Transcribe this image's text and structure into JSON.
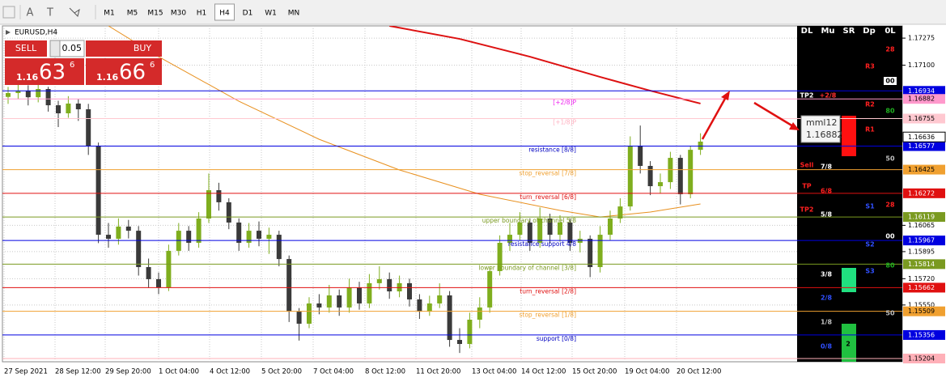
{
  "toolbar": {
    "tools": [
      "A",
      "T"
    ],
    "timeframes": [
      "M1",
      "M5",
      "M15",
      "M30",
      "H1",
      "H4",
      "D1",
      "W1",
      "MN"
    ],
    "active": "H4"
  },
  "symbol": "EURUSD,H4",
  "trade": {
    "sell": "SELL",
    "buy": "BUY",
    "lot": 0.05,
    "bid": {
      "big": 1.16,
      "pips": 63,
      "point": 6
    },
    "ask": {
      "big": 1.16,
      "pips": 66,
      "point": 6
    }
  },
  "chart": {
    "type": "candlestick",
    "ylim": [
      1.15183,
      1.17354
    ],
    "yticks": [
      1.17275,
      {
        "value": 1.171,
        "label": "1.17100"
      },
      1.16065,
      1.15895,
      {
        "value": 1.1572,
        "label": "1.15720"
      },
      {
        "value": 1.1555,
        "label": "1.15550"
      }
    ],
    "up_color": "#7fae1e",
    "down_color": "#3a3a3a",
    "grid": true,
    "candles": [
      [
        1.16895,
        1.1696,
        1.1685,
        1.1692
      ],
      [
        1.1692,
        1.16975,
        1.1688,
        1.16935
      ],
      [
        1.16935,
        1.1697,
        1.1684,
        1.16893
      ],
      [
        1.16893,
        1.1699,
        1.1686,
        1.16946
      ],
      [
        1.16946,
        1.1696,
        1.168,
        1.16841
      ],
      [
        1.16841,
        1.1687,
        1.167,
        1.16789
      ],
      [
        1.16789,
        1.169,
        1.1676,
        1.16852
      ],
      [
        1.16852,
        1.1688,
        1.1674,
        1.16815
      ],
      [
        1.16815,
        1.1685,
        1.1652,
        1.1658
      ],
      [
        1.1658,
        1.166,
        1.1595,
        1.16004
      ],
      [
        1.16004,
        1.1608,
        1.1592,
        1.15978
      ],
      [
        1.15978,
        1.1611,
        1.1594,
        1.16057
      ],
      [
        1.16057,
        1.161,
        1.1598,
        1.1603
      ],
      [
        1.1603,
        1.1606,
        1.1574,
        1.15795
      ],
      [
        1.15795,
        1.1585,
        1.1566,
        1.15717
      ],
      [
        1.15717,
        1.1576,
        1.1562,
        1.15664
      ],
      [
        1.15664,
        1.1594,
        1.1564,
        1.159
      ],
      [
        1.159,
        1.1608,
        1.1587,
        1.1603
      ],
      [
        1.1603,
        1.1606,
        1.159,
        1.15952
      ],
      [
        1.15952,
        1.1615,
        1.1592,
        1.16109
      ],
      [
        1.16109,
        1.164,
        1.1608,
        1.16292
      ],
      [
        1.16292,
        1.1634,
        1.1616,
        1.16214
      ],
      [
        1.16214,
        1.1624,
        1.1604,
        1.16083
      ],
      [
        1.16083,
        1.1611,
        1.159,
        1.15952
      ],
      [
        1.15952,
        1.1608,
        1.1592,
        1.1603
      ],
      [
        1.1603,
        1.1609,
        1.1593,
        1.15978
      ],
      [
        1.15978,
        1.1605,
        1.1588,
        1.16004
      ],
      [
        1.16004,
        1.1603,
        1.158,
        1.15847
      ],
      [
        1.15847,
        1.1587,
        1.1544,
        1.15507
      ],
      [
        1.15507,
        1.1553,
        1.1532,
        1.15429
      ],
      [
        1.15429,
        1.156,
        1.154,
        1.1556
      ],
      [
        1.1556,
        1.1562,
        1.1549,
        1.15534
      ],
      [
        1.15534,
        1.1568,
        1.155,
        1.15612
      ],
      [
        1.15612,
        1.1565,
        1.1548,
        1.15534
      ],
      [
        1.15534,
        1.1572,
        1.155,
        1.15664
      ],
      [
        1.15664,
        1.157,
        1.1552,
        1.1556
      ],
      [
        1.1556,
        1.1575,
        1.1553,
        1.15691
      ],
      [
        1.15691,
        1.158,
        1.1565,
        1.15717
      ],
      [
        1.15717,
        1.1576,
        1.1559,
        1.15638
      ],
      [
        1.15638,
        1.1574,
        1.156,
        1.15691
      ],
      [
        1.15691,
        1.1572,
        1.1554,
        1.15586
      ],
      [
        1.15586,
        1.1562,
        1.1546,
        1.15507
      ],
      [
        1.15507,
        1.1561,
        1.1548,
        1.1556
      ],
      [
        1.1556,
        1.1569,
        1.1553,
        1.15612
      ],
      [
        1.15612,
        1.1564,
        1.1528,
        1.15324
      ],
      [
        1.15324,
        1.154,
        1.1524,
        1.15298
      ],
      [
        1.15298,
        1.155,
        1.1527,
        1.15455
      ],
      [
        1.15455,
        1.156,
        1.154,
        1.15534
      ],
      [
        1.15534,
        1.158,
        1.155,
        1.15769
      ],
      [
        1.15769,
        1.16,
        1.1574,
        1.15952
      ],
      [
        1.15952,
        1.1608,
        1.159,
        1.16004
      ],
      [
        1.16004,
        1.1615,
        1.1597,
        1.16083
      ],
      [
        1.16083,
        1.1611,
        1.159,
        1.15952
      ],
      [
        1.15952,
        1.1618,
        1.1592,
        1.16109
      ],
      [
        1.16109,
        1.1614,
        1.1595,
        1.16004
      ],
      [
        1.16004,
        1.1613,
        1.1596,
        1.16083
      ],
      [
        1.16083,
        1.1611,
        1.159,
        1.15952
      ],
      [
        1.15952,
        1.1603,
        1.1589,
        1.15978
      ],
      [
        1.15978,
        1.16,
        1.1573,
        1.15795
      ],
      [
        1.15795,
        1.1606,
        1.1576,
        1.16004
      ],
      [
        1.16004,
        1.1616,
        1.1597,
        1.16109
      ],
      [
        1.16109,
        1.1624,
        1.1608,
        1.16187
      ],
      [
        1.16187,
        1.1664,
        1.1616,
        1.1658
      ],
      [
        1.1658,
        1.1671,
        1.164,
        1.16449
      ],
      [
        1.16449,
        1.1648,
        1.1626,
        1.16318
      ],
      [
        1.16318,
        1.164,
        1.1627,
        1.16344
      ],
      [
        1.16344,
        1.1654,
        1.163,
        1.16501
      ],
      [
        1.16501,
        1.1652,
        1.162,
        1.16266
      ],
      [
        1.16266,
        1.1658,
        1.1624,
        1.16553
      ],
      [
        1.16553,
        1.1666,
        1.1652,
        1.16606
      ]
    ],
    "moving_averages": [
      {
        "color": "#dd1111",
        "index": [
          38,
          45,
          52,
          59,
          64,
          69
        ],
        "values": [
          1.17354,
          1.1727,
          1.17155,
          1.17024,
          1.16935,
          1.16852
        ]
      },
      {
        "color": "#e8901e",
        "index": [
          10,
          15,
          23,
          31,
          39,
          47,
          55,
          59,
          64,
          69
        ],
        "values": [
          1.17354,
          1.17155,
          1.16867,
          1.16621,
          1.16423,
          1.16266,
          1.16161,
          1.16119,
          1.16151,
          1.16203
        ]
      }
    ],
    "levels": [
      {
        "value": 1.16934,
        "color": "#0000e0",
        "label_color": "#ffffff"
      },
      {
        "value": 1.16882,
        "color": "#ff99cc",
        "label_color": "#000000",
        "text": "[+2/8]P",
        "text_color": "#ee22ee"
      },
      {
        "value": 1.16755,
        "color": "#ffc8d0",
        "label_color": "#000000",
        "text": "[+1/8]P",
        "text_color": "#ffb0c0"
      },
      {
        "value": 1.16577,
        "color": "#0000e0",
        "label_color": "#ffffff",
        "text": "resistance  [8/8]",
        "text_color": "#0000c0"
      },
      {
        "value": 1.16425,
        "color": "#f0a030",
        "label_color": "#000000",
        "text": "stop_reversal  [7/8]",
        "text_color": "#f0a030"
      },
      {
        "value": 1.16272,
        "color": "#e01010",
        "label_color": "#ffffff",
        "text": "turn_reversal  [6/8]",
        "text_color": "#e01010"
      },
      {
        "value": 1.16119,
        "color": "#7a9a20",
        "label_color": "#ffffff",
        "text": "upper boundary of channel 5/8",
        "text_color": "#7a9a20"
      },
      {
        "value": 1.15967,
        "color": "#0000e0",
        "label_color": "#ffffff",
        "text": "resistance support 4/8",
        "text_color": "#0000c0"
      },
      {
        "value": 1.15814,
        "color": "#7a9a20",
        "label_color": "#ffffff",
        "text": "lower boundary of channel  [3/8]",
        "text_color": "#7a9a20"
      },
      {
        "value": 1.15662,
        "color": "#e01010",
        "label_color": "#ffffff",
        "text": "turn_reversal  [2/8]",
        "text_color": "#e01010"
      },
      {
        "value": 1.15509,
        "color": "#f0a030",
        "label_color": "#000000",
        "text": "stop_reversal  [1/8]",
        "text_color": "#f0a030"
      },
      {
        "value": 1.15356,
        "color": "#0000e0",
        "label_color": "#ffffff",
        "text": "support  [0/8]",
        "text_color": "#0000c0"
      },
      {
        "value": 1.15204,
        "color": "#ffb0b8",
        "label_color": "#000000"
      }
    ],
    "bid": 1.16636,
    "tooltip": {
      "name": "mml12",
      "value": 1.16882
    },
    "time_labels": [
      "27 Sep 2021",
      "28 Sep 12:00",
      "29 Sep 20:00",
      "1 Oct 04:00",
      "4 Oct 12:00",
      "5 Oct 20:00",
      "7 Oct 04:00",
      "8 Oct 12:00",
      "11 Oct 20:00",
      "13 Oct 04:00",
      "14 Oct 12:00",
      "15 Oct 20:00",
      "19 Oct 04:00",
      "20 Oct 12:00"
    ]
  },
  "panel": {
    "headers": [
      "DL",
      "Mu",
      "SR",
      "Dp",
      "0L"
    ],
    "items": [
      {
        "text": "TP2",
        "color": "#ffffff"
      },
      {
        "text": "+2/8",
        "color": "#ff3030"
      },
      {
        "text": "R3",
        "color": "#ff2020"
      },
      {
        "text": 28,
        "color": "#ff2020"
      },
      {
        "text": "00",
        "color": "#000000"
      },
      {
        "text": "R2",
        "color": "#ff2020"
      },
      {
        "text": 80,
        "color": "#20b020"
      },
      {
        "text": "R1",
        "color": "#ff2020"
      },
      {
        "text": "Sell",
        "color": "#ff2020"
      },
      {
        "text": "7/8",
        "color": "#ffffff"
      },
      {
        "text": 50,
        "color": "#c0c0c0"
      },
      {
        "text": "TP",
        "color": "#ff2020"
      },
      {
        "text": "6/8",
        "color": "#ff2020"
      },
      {
        "text": "TP2",
        "color": "#ff2020"
      },
      {
        "text": 28,
        "color": "#ff2020"
      },
      {
        "text": "S1",
        "color": "#3050ff"
      },
      {
        "text": "5/8",
        "color": "#ffffff"
      },
      {
        "text": "00",
        "color": "#ffffff"
      },
      {
        "text": "S2",
        "color": "#3050ff"
      },
      {
        "text": 80,
        "color": "#20b020"
      },
      {
        "text": "S3",
        "color": "#3050ff"
      },
      {
        "text": "3/8",
        "color": "#ffffff"
      },
      {
        "text": "2/8",
        "color": "#3050ff"
      },
      {
        "text": 50,
        "color": "#c0c0c0"
      },
      {
        "text": "1/8",
        "color": "#c0c0c0"
      },
      {
        "text": "0/8",
        "color": "#3050ff"
      },
      {
        "text": 2,
        "color": "#000000"
      }
    ]
  }
}
